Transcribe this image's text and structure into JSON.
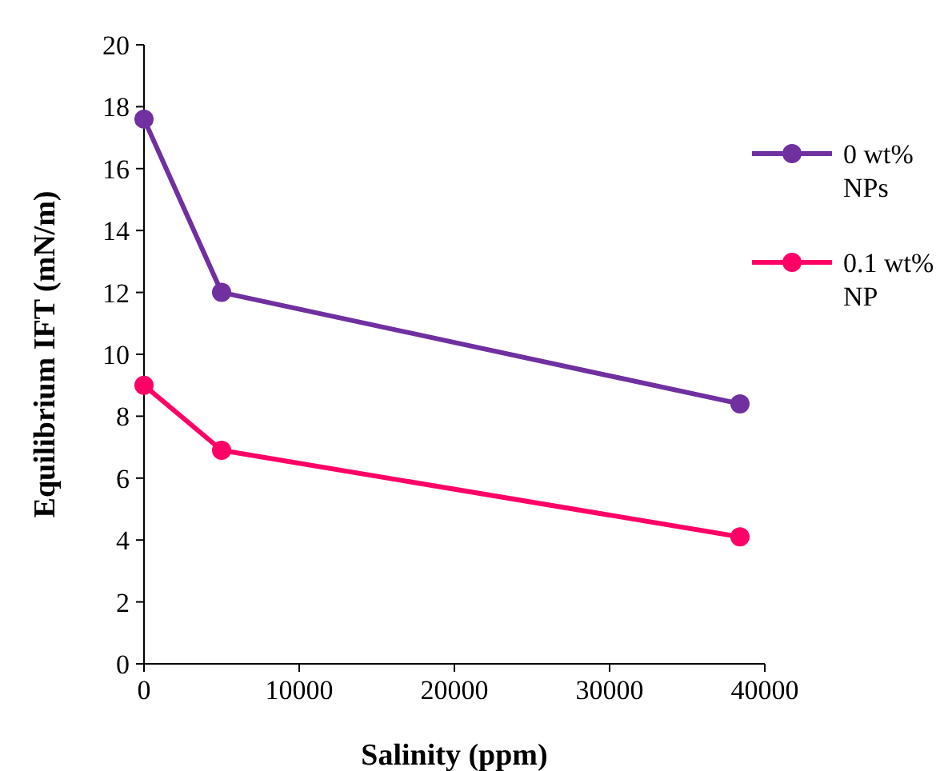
{
  "chart_data": {
    "type": "line",
    "xlabel": "Salinity  (ppm)",
    "ylabel": "Equilibrium  IFT  (mN/m)",
    "xlim": [
      0,
      40000
    ],
    "xticks": [
      0,
      10000,
      20000,
      30000,
      40000
    ],
    "ylim": [
      0,
      20
    ],
    "yticks": [
      0,
      2,
      4,
      6,
      8,
      10,
      12,
      14,
      16,
      18,
      20
    ],
    "x": [
      0,
      5000,
      38400
    ],
    "series": [
      {
        "name": "0 wt% NPs",
        "color": "#7030a0",
        "values": [
          17.6,
          12.0,
          8.4
        ]
      },
      {
        "name": "0.1 wt% NP",
        "color": "#ff0066",
        "values": [
          9.0,
          6.9,
          4.1
        ]
      }
    ],
    "marker": "circle",
    "line_style": "solid",
    "grid": false,
    "legend": "right"
  }
}
